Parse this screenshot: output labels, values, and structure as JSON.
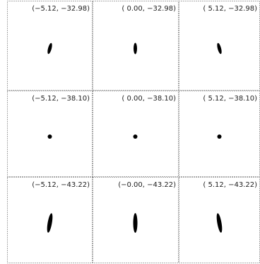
{
  "panels": [
    {
      "label": "(−5.12, −32.98)"
    },
    {
      "label": "( 0.00, −32.98)"
    },
    {
      "label": "( 5.12, −32.98)"
    },
    {
      "label": "(−5.12, −38.10)"
    },
    {
      "label": "( 0.00, −38.10)"
    },
    {
      "label": "( 5.12, −38.10)"
    },
    {
      "label": "(−5.12, −43.22)"
    },
    {
      "label": "(−0.00, −43.22)"
    },
    {
      "label": "( 5.12, −43.22)"
    }
  ]
}
